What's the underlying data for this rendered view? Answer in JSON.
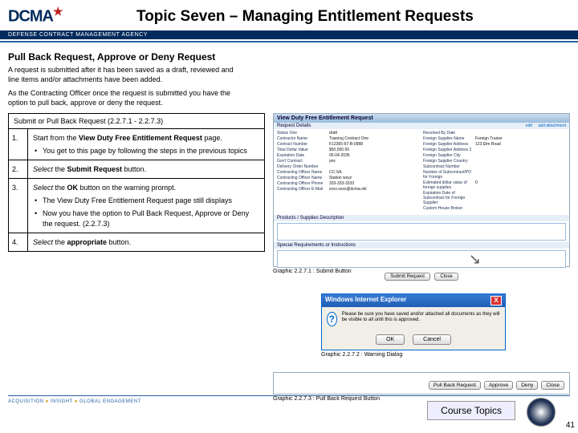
{
  "header": {
    "logo_text": "DCMA",
    "agency_band": "DEFENSE CONTRACT MANAGEMENT AGENCY",
    "topic_title": "Topic Seven – Managing Entitlement Requests"
  },
  "section_title": "Pull Back Request, Approve or Deny Request",
  "intro1": "A request is submitted after it has been saved as a draft, reviewed and line items and/or attachments have been added.",
  "intro2": "As the Contracting Officer once the request is submitted you have the option to pull back, approve or deny the request.",
  "steps_header": "Submit or Pull Back Request (2.2.7.1 - 2.2.7.3)",
  "steps": [
    {
      "num": "1.",
      "body_pre": "Start from the ",
      "body_bold": "View Duty Free Entitlement Request",
      "body_post": " page.",
      "bullets": [
        "You get to this page by following the steps in the previous topics"
      ]
    },
    {
      "num": "2.",
      "body_pre": "Select the ",
      "body_bold": "Submit Request",
      "body_post": " button.",
      "italic_lead": true
    },
    {
      "num": "3.",
      "body_pre": "Select the ",
      "body_bold": "OK",
      "body_post": " button on the warning prompt.",
      "italic_lead": true,
      "bullets": [
        "The View Duty Free Entitlement Request page still displays",
        "Now you have the option to Pull Back Request, Approve or Deny the request. (2.2.7.3)"
      ]
    },
    {
      "num": "4.",
      "body_pre": "Select the ",
      "body_bold": "appropriate",
      "body_post": " button.",
      "italic_lead": true
    }
  ],
  "shot1": {
    "title": "View Duty Free Entitlement Request",
    "subhead": "Request Details",
    "link_edit": "edit",
    "link_att": "add attachment",
    "left_fields": [
      {
        "l": "Status One",
        "v": "draft"
      },
      {
        "l": "Contractor Name",
        "v": "Training Contract One"
      },
      {
        "l": "Contract Number",
        "v": "F12365-67-B-0988"
      },
      {
        "l": "Total Dollar Value",
        "v": "$50,000.00"
      },
      {
        "l": "Expiration Date",
        "v": "05-04-2035"
      },
      {
        "l": "Gov't Contract",
        "v": "yes"
      },
      {
        "l": "Delivery Order Number",
        "v": ""
      },
      {
        "l": "Contracting Officer Name",
        "v": "CC-SA"
      },
      {
        "l": "Contracting Officer Name",
        "v": "Station wxyz"
      },
      {
        "l": "Contracting Officer Phone",
        "v": "333-333-3333"
      },
      {
        "l": "Contracting Officer E-Mail",
        "v": "xxxx.xxxx@dcma.mil"
      }
    ],
    "right_fields": [
      {
        "l": "Received By Date",
        "v": ""
      },
      {
        "l": "Foreign Supplier Name",
        "v": "Foreign Trainer"
      },
      {
        "l": "Foreign Supplier Address",
        "v": "123 Elm Road"
      },
      {
        "l": "Foreign Supplier Address 2",
        "v": ""
      },
      {
        "l": "Foreign Supplier City",
        "v": ""
      },
      {
        "l": "Foreign Supplier Country",
        "v": ""
      },
      {
        "l": "Subcontract Number",
        "v": ""
      },
      {
        "l": "Number of Subcontract/PO for Foreign",
        "v": ""
      },
      {
        "l": "Estimated dollar value of foreign supplies",
        "v": "0"
      },
      {
        "l": "Expiration Date of Subcontract for Foreign Supplier",
        "v": ""
      },
      {
        "l": "Custom House Broker",
        "v": ""
      }
    ],
    "sec_products": "Products / Supplies Description",
    "sec_special": "Special Requirements or Instructions",
    "btn_submit": "Submit Request",
    "btn_close": "Close",
    "caption": "Graphic 2.2.7.1 : Submit Button"
  },
  "dlg": {
    "title": "Windows Internet Explorer",
    "msg": "Please be sure you have saved and/or attached all documents as they will be visible to all until this is approved.",
    "ok": "OK",
    "cancel": "Cancel",
    "caption": "Graphic 2.2.7.2 : Warning Dialog"
  },
  "bar3": {
    "btns": [
      "Pull Back Request",
      "Approve",
      "Deny",
      "Close"
    ],
    "caption": "Graphic 2.2.7.3 : Pull Back Request Button"
  },
  "course_topics": "Course Topics",
  "footer_tag": "ACQUISITION ● INSIGHT ● GLOBAL ENGAGEMENT",
  "page_number": "41"
}
